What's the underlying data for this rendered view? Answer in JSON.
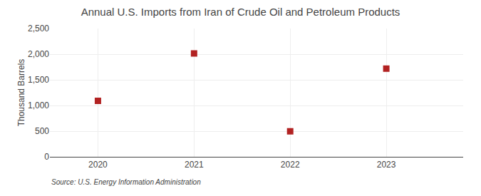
{
  "chart_data": {
    "type": "scatter",
    "title": "Annual U.S. Imports from Iran of Crude Oil and Petroleum Products",
    "ylabel": "Thousand Barrels",
    "annotations": [
      "Source: U.S. Energy Information Administration"
    ],
    "x": [
      2020,
      2021,
      2022,
      2023
    ],
    "values": [
      1090,
      2014,
      497,
      1718
    ],
    "color": "#b22222",
    "marker": "square",
    "xlim": [
      2019.5,
      2023.8
    ],
    "xticks": [
      2020,
      2021,
      2022,
      2023
    ],
    "ylim": [
      0,
      2500
    ],
    "yticks": [
      0,
      500,
      {
        "value": 1000,
        "label": "1,000"
      },
      {
        "value": 1500,
        "label": "1,500"
      },
      {
        "value": 2000,
        "label": "2,000"
      },
      {
        "value": 2500,
        "label": "2,500"
      }
    ],
    "grid": true
  }
}
